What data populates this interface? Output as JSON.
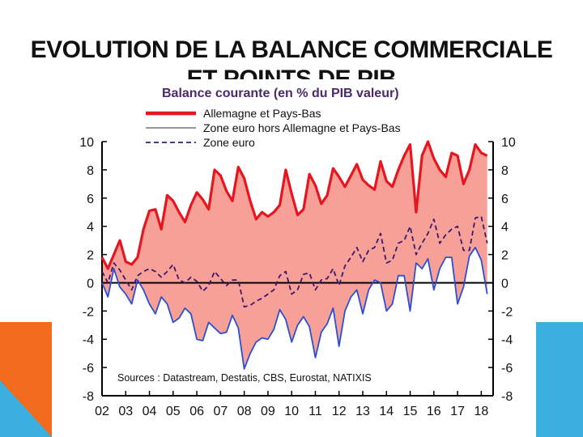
{
  "slide": {
    "title_line1": "EVOLUTION DE LA BALANCE COMMERCIALE",
    "title_line2": "ET POINTS DE PIB"
  },
  "colors": {
    "accent_orange": "#f26a1b",
    "accent_blue": "#3bb0e0",
    "germany_line": "#e8151f",
    "germany_fill": "#f7a097",
    "eurozone_ex_line": "#2c4fd1",
    "eurozone_line": "#3a1a6e"
  },
  "chart_data": {
    "type": "line",
    "title": "Balance courante (en % du PIB valeur)",
    "source": "Sources : Datastream, Destatis, CBS, Eurostat, NATIXIS",
    "xlabel": "",
    "ylabel": "",
    "ylim": [
      -8,
      10
    ],
    "yticks": [
      10,
      8,
      6,
      4,
      2,
      0,
      -2,
      -4,
      -6,
      -8
    ],
    "xlim": [
      2002,
      2018.5
    ],
    "xticks": [
      "02",
      "03",
      "04",
      "05",
      "06",
      "07",
      "08",
      "09",
      "10",
      "11",
      "12",
      "13",
      "14",
      "15",
      "16",
      "17",
      "18"
    ],
    "legend_position": "top-left",
    "series": [
      {
        "name": "Allemagne et Pays-Bas",
        "style": "solid-thick",
        "fill_to_other": true,
        "x": [
          2002.0,
          2002.25,
          2002.5,
          2002.75,
          2003.0,
          2003.25,
          2003.5,
          2003.75,
          2004.0,
          2004.25,
          2004.5,
          2004.75,
          2005.0,
          2005.25,
          2005.5,
          2005.75,
          2006.0,
          2006.25,
          2006.5,
          2006.75,
          2007.0,
          2007.25,
          2007.5,
          2007.75,
          2008.0,
          2008.25,
          2008.5,
          2008.75,
          2009.0,
          2009.25,
          2009.5,
          2009.75,
          2010.0,
          2010.25,
          2010.5,
          2010.75,
          2011.0,
          2011.25,
          2011.5,
          2011.75,
          2012.0,
          2012.25,
          2012.5,
          2012.75,
          2013.0,
          2013.25,
          2013.5,
          2013.75,
          2014.0,
          2014.25,
          2014.5,
          2014.75,
          2015.0,
          2015.25,
          2015.5,
          2015.75,
          2016.0,
          2016.25,
          2016.5,
          2016.75,
          2017.0,
          2017.25,
          2017.5,
          2017.75,
          2018.0,
          2018.25
        ],
        "values": [
          1.8,
          1.0,
          2.0,
          3.0,
          1.5,
          1.3,
          1.8,
          3.8,
          5.1,
          5.2,
          3.8,
          6.2,
          5.8,
          5.0,
          4.3,
          5.5,
          6.4,
          5.9,
          5.2,
          8.0,
          7.6,
          6.5,
          5.8,
          8.2,
          7.4,
          5.8,
          4.5,
          5.0,
          4.7,
          5.0,
          5.5,
          8.0,
          6.3,
          4.8,
          5.2,
          7.7,
          6.9,
          5.6,
          6.2,
          8.1,
          7.5,
          6.8,
          7.6,
          8.4,
          7.3,
          6.9,
          6.6,
          8.6,
          7.2,
          6.8,
          8.0,
          9.0,
          9.8,
          5.0,
          9.0,
          10.0,
          8.8,
          8.0,
          7.5,
          9.2,
          9.0,
          7.0,
          8.0,
          9.8,
          9.2,
          9.0
        ]
      },
      {
        "name": "Zone euro hors Allemagne et Pays-Bas",
        "style": "solid-thin",
        "x": [
          2002.0,
          2002.25,
          2002.5,
          2002.75,
          2003.0,
          2003.25,
          2003.5,
          2003.75,
          2004.0,
          2004.25,
          2004.5,
          2004.75,
          2005.0,
          2005.25,
          2005.5,
          2005.75,
          2006.0,
          2006.25,
          2006.5,
          2006.75,
          2007.0,
          2007.25,
          2007.5,
          2007.75,
          2008.0,
          2008.25,
          2008.5,
          2008.75,
          2009.0,
          2009.25,
          2009.5,
          2009.75,
          2010.0,
          2010.25,
          2010.5,
          2010.75,
          2011.0,
          2011.25,
          2011.5,
          2011.75,
          2012.0,
          2012.25,
          2012.5,
          2012.75,
          2013.0,
          2013.25,
          2013.5,
          2013.75,
          2014.0,
          2014.25,
          2014.5,
          2014.75,
          2015.0,
          2015.25,
          2015.5,
          2015.75,
          2016.0,
          2016.25,
          2016.5,
          2016.75,
          2017.0,
          2017.25,
          2017.5,
          2017.75,
          2018.0,
          2018.25
        ],
        "values": [
          0.0,
          -1.0,
          1.0,
          -0.3,
          -0.8,
          -1.5,
          0.2,
          -0.5,
          -1.5,
          -2.2,
          -1.0,
          -1.5,
          -2.8,
          -2.5,
          -1.8,
          -2.2,
          -4.0,
          -4.1,
          -2.8,
          -3.2,
          -3.6,
          -3.5,
          -2.3,
          -3.2,
          -6.1,
          -5.0,
          -4.2,
          -3.9,
          -4.0,
          -3.3,
          -1.9,
          -2.6,
          -4.2,
          -3.0,
          -2.4,
          -3.1,
          -5.3,
          -3.5,
          -2.9,
          -1.8,
          -4.5,
          -2.0,
          -1.0,
          -0.5,
          -2.2,
          -0.5,
          0.2,
          0.0,
          -2.0,
          -1.5,
          0.5,
          0.5,
          -2.0,
          1.4,
          1.0,
          1.7,
          -0.5,
          1.0,
          1.8,
          1.8,
          -1.5,
          -0.3,
          1.9,
          2.5,
          1.6,
          -0.8
        ]
      },
      {
        "name": "Zone euro",
        "style": "dashed",
        "x": [
          2002.0,
          2002.25,
          2002.5,
          2002.75,
          2003.0,
          2003.25,
          2003.5,
          2003.75,
          2004.0,
          2004.25,
          2004.5,
          2004.75,
          2005.0,
          2005.25,
          2005.5,
          2005.75,
          2006.0,
          2006.25,
          2006.5,
          2006.75,
          2007.0,
          2007.25,
          2007.5,
          2007.75,
          2008.0,
          2008.25,
          2008.5,
          2008.75,
          2009.0,
          2009.25,
          2009.5,
          2009.75,
          2010.0,
          2010.25,
          2010.5,
          2010.75,
          2011.0,
          2011.25,
          2011.5,
          2011.75,
          2012.0,
          2012.25,
          2012.5,
          2012.75,
          2013.0,
          2013.25,
          2013.5,
          2013.75,
          2014.0,
          2014.25,
          2014.5,
          2014.75,
          2015.0,
          2015.25,
          2015.5,
          2015.75,
          2016.0,
          2016.25,
          2016.5,
          2016.75,
          2017.0,
          2017.25,
          2017.5,
          2017.75,
          2018.0,
          2018.25
        ],
        "values": [
          0.8,
          0.0,
          1.4,
          0.9,
          0.2,
          -0.5,
          0.5,
          0.8,
          1.0,
          0.8,
          0.4,
          0.8,
          1.3,
          0.2,
          0.0,
          0.4,
          0.1,
          -0.6,
          -0.2,
          0.8,
          0.3,
          -0.2,
          0.2,
          0.2,
          -1.7,
          -1.6,
          -1.3,
          -1.1,
          -0.8,
          -0.5,
          0.5,
          0.8,
          -0.8,
          -0.5,
          0.6,
          0.7,
          -0.5,
          0.2,
          0.3,
          1.0,
          -0.2,
          1.2,
          1.8,
          2.5,
          1.5,
          2.3,
          2.5,
          3.5,
          1.4,
          1.6,
          2.8,
          3.0,
          4.0,
          2.0,
          2.8,
          3.5,
          4.5,
          2.8,
          3.4,
          3.8,
          4.0,
          2.3,
          2.3,
          4.6,
          4.7,
          2.8
        ]
      }
    ]
  }
}
